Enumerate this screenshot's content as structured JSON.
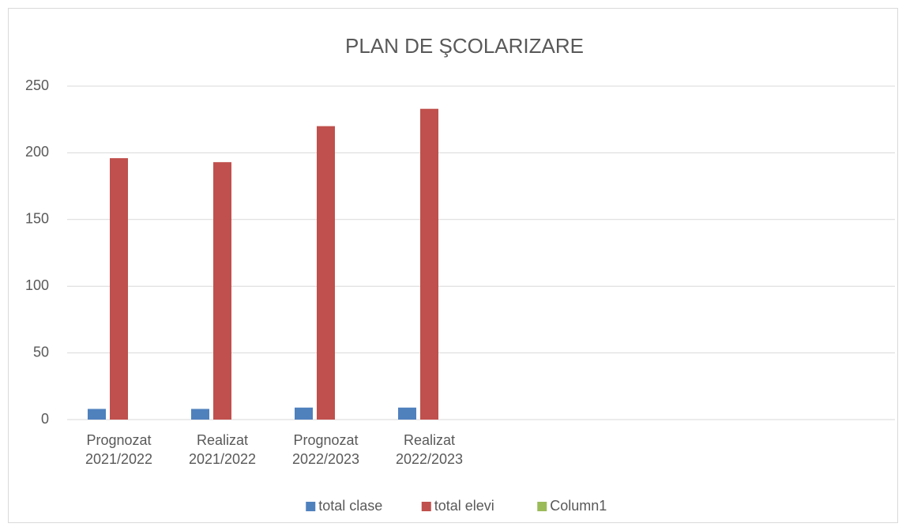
{
  "chart_data": {
    "type": "bar",
    "title": "PLAN DE ŞCOLARIZARE",
    "categories": [
      "Prognozat 2021/2022",
      "Realizat 2021/2022",
      "Prognozat 2022/2023",
      "Realizat 2022/2023",
      null,
      null,
      null,
      null
    ],
    "series": [
      {
        "name": "total clase",
        "color": "#4f81bd",
        "values": [
          8,
          8,
          9,
          9,
          null,
          null,
          null,
          null
        ]
      },
      {
        "name": "total elevi",
        "color": "#c0504d",
        "values": [
          196,
          193,
          220,
          233,
          null,
          null,
          null,
          null
        ]
      },
      {
        "name": "Column1",
        "color": "#9bbb59",
        "values": [
          null,
          null,
          null,
          null,
          null,
          null,
          null,
          null
        ]
      }
    ],
    "ylim": [
      0,
      250
    ],
    "yticks": [
      0,
      50,
      100,
      150,
      200,
      250
    ],
    "grid": true,
    "legend": "bottom"
  }
}
